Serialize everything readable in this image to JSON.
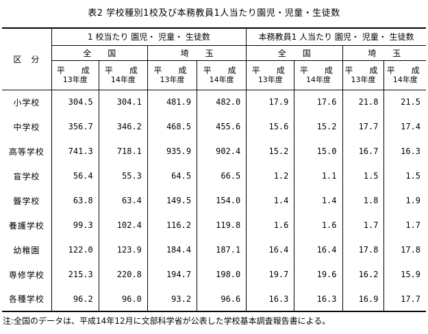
{
  "title": "表2 学校種別1校及び本務教員1人当たり園児・児童・生徒数",
  "header": {
    "kubun": "区　分",
    "group1": "1 校当たり 園児・ 児童・ 生徒数",
    "group2": "本務教員1 人当たり 園児・ 児童・ 生徒数",
    "national": "全　　国",
    "saitama": "埼　　玉",
    "era": "平　成",
    "year13": "13年度",
    "year14": "14年度"
  },
  "rows": [
    {
      "label": "小学校",
      "v": [
        "304.5",
        "304.1",
        "481.9",
        "482.0",
        "17.9",
        "17.6",
        "21.8",
        "21.5"
      ]
    },
    {
      "label": "中学校",
      "v": [
        "356.7",
        "346.2",
        "468.5",
        "455.6",
        "15.6",
        "15.2",
        "17.7",
        "17.4"
      ]
    },
    {
      "label": "高等学校",
      "v": [
        "741.3",
        "718.1",
        "935.9",
        "902.4",
        "15.2",
        "15.0",
        "16.7",
        "16.3"
      ]
    },
    {
      "label": "盲学校",
      "v": [
        "56.4",
        "55.3",
        "64.5",
        "66.5",
        "1.2",
        "1.1",
        "1.5",
        "1.5"
      ]
    },
    {
      "label": "聾学校",
      "v": [
        "63.8",
        "63.4",
        "149.5",
        "154.0",
        "1.4",
        "1.4",
        "1.8",
        "1.9"
      ]
    },
    {
      "label": "養護学校",
      "v": [
        "99.3",
        "102.4",
        "116.2",
        "119.8",
        "1.6",
        "1.6",
        "1.7",
        "1.7"
      ]
    },
    {
      "label": "幼稚園",
      "v": [
        "122.0",
        "123.9",
        "184.4",
        "187.1",
        "16.4",
        "16.4",
        "17.8",
        "17.8"
      ]
    },
    {
      "label": "専修学校",
      "v": [
        "215.3",
        "220.8",
        "194.7",
        "198.0",
        "19.7",
        "19.6",
        "16.2",
        "15.9"
      ]
    },
    {
      "label": "各種学校",
      "v": [
        "96.2",
        "96.0",
        "93.2",
        "96.6",
        "16.3",
        "16.3",
        "16.9",
        "17.7"
      ]
    }
  ],
  "note": "注:全国のデータは、平成14年12月に文部科学省が公表した学校基本調査報告書による。"
}
